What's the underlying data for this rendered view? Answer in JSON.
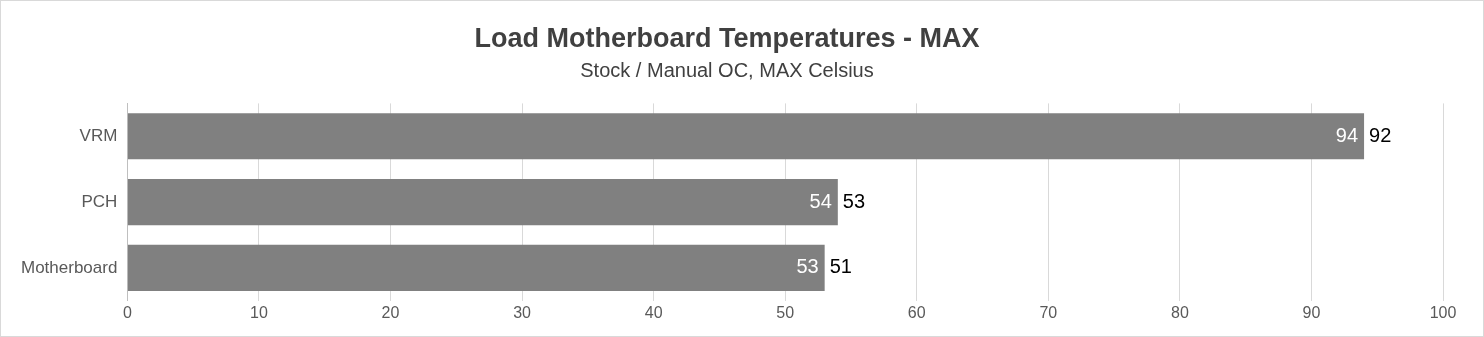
{
  "chart_data": {
    "type": "bar",
    "orientation": "horizontal",
    "title": "Load Motherboard Temperatures - MAX",
    "subtitle": "Stock / Manual OC, MAX Celsius",
    "categories": [
      "VRM",
      "PCH",
      "Motherboard"
    ],
    "series": [
      {
        "color": "#808080",
        "values": [
          94,
          54,
          53
        ]
      }
    ],
    "annotations": [
      {
        "text": "92",
        "x": 94,
        "y": "VRM"
      },
      {
        "text": "53",
        "x": 54,
        "y": "PCH"
      },
      {
        "text": "51",
        "x": 53,
        "y": "Motherboard"
      }
    ],
    "xlim": [
      0,
      100
    ],
    "xticks": [
      0,
      10,
      20,
      30,
      40,
      50,
      60,
      70,
      80,
      90,
      100
    ],
    "grid": "x",
    "data_labels": true,
    "legend": false
  }
}
